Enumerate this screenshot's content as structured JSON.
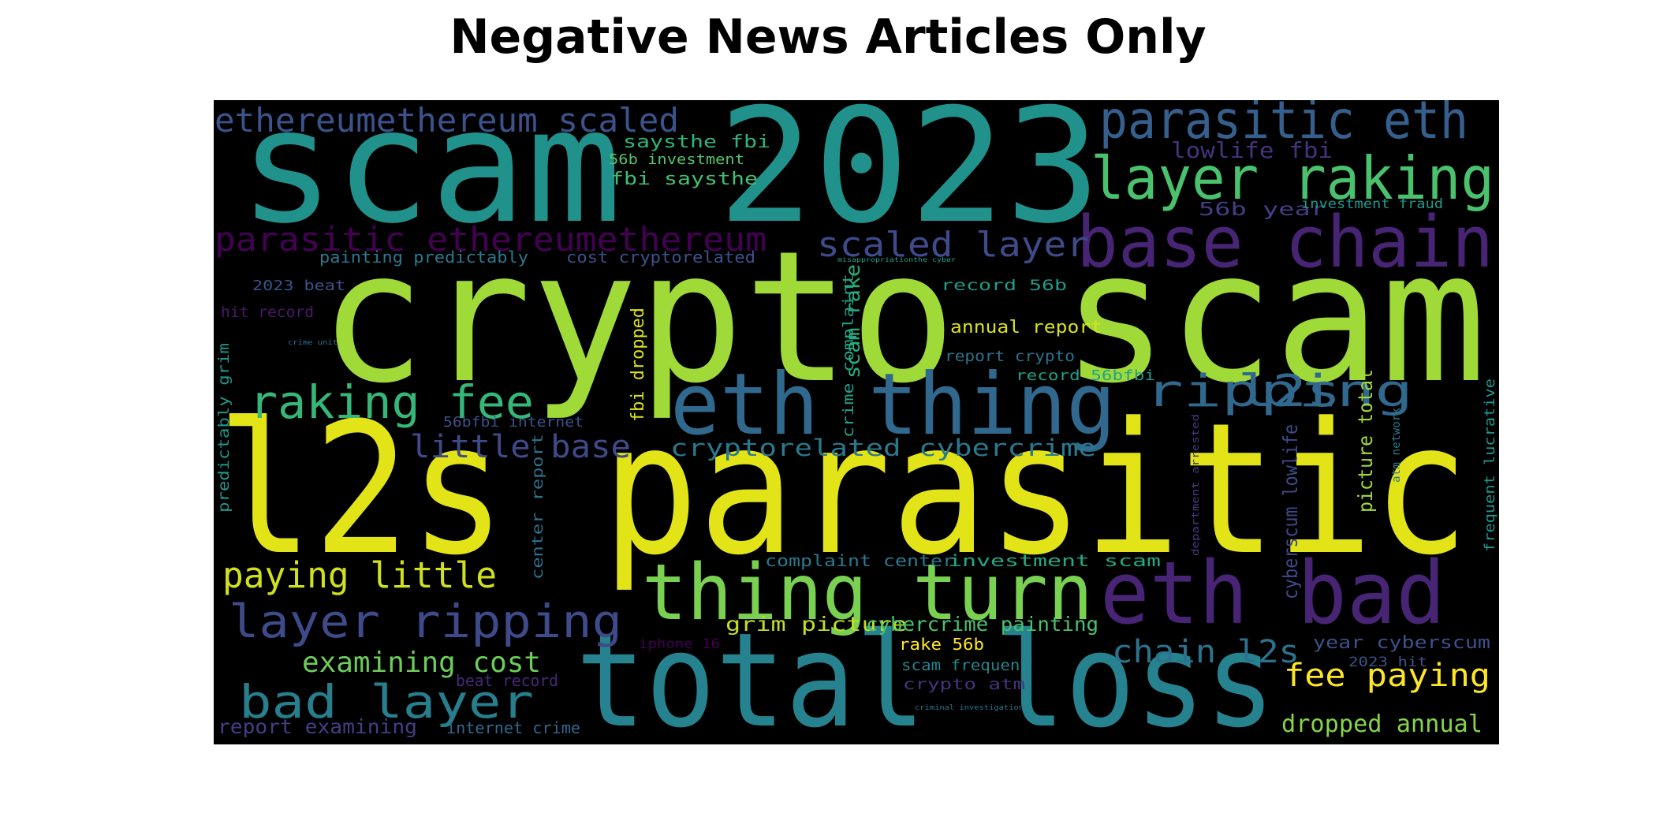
{
  "title": "Negative News Articles Only",
  "colors": {
    "background": "#000000",
    "page": "#ffffff"
  },
  "chart_data": {
    "type": "wordcloud",
    "words": [
      {
        "text": "scam 2023",
        "color": "#21918c"
      },
      {
        "text": "crypto scam",
        "color": "#a0da39"
      },
      {
        "text": "l2s parasitic",
        "color": "#e3e418"
      },
      {
        "text": "total loss",
        "color": "#26828e"
      },
      {
        "text": "eth thing",
        "color": "#31688e"
      },
      {
        "text": "thing turn",
        "color": "#7ad151"
      },
      {
        "text": "eth bad",
        "color": "#482475"
      },
      {
        "text": "base chain",
        "color": "#482475"
      },
      {
        "text": "layer raking",
        "color": "#4ac16d"
      },
      {
        "text": "parasitic eth",
        "color": "#355f8d"
      },
      {
        "text": "raking fee",
        "color": "#35b779"
      },
      {
        "text": "layer ripping",
        "color": "#3e4a89"
      },
      {
        "text": "bad layer",
        "color": "#277f8e"
      },
      {
        "text": "paying little",
        "color": "#d0e11c"
      },
      {
        "text": "ripping",
        "color": "#31688e"
      },
      {
        "text": "l2s",
        "color": "#31688e"
      },
      {
        "text": "ethereumethereum scaled",
        "color": "#3b528b"
      },
      {
        "text": "parasitic ethereumethereum",
        "color": "#440154"
      },
      {
        "text": "scaled layer",
        "color": "#3e4a89"
      },
      {
        "text": "little base",
        "color": "#3e4a89"
      },
      {
        "text": "cryptorelated cybercrime",
        "color": "#2a788e"
      },
      {
        "text": "examining cost",
        "color": "#6ccd5a"
      },
      {
        "text": "chain l2s",
        "color": "#2c728e"
      },
      {
        "text": "fee paying",
        "color": "#fde725"
      },
      {
        "text": "dropped annual",
        "color": "#86d549"
      },
      {
        "text": "lowlife fbi",
        "color": "#46337e"
      },
      {
        "text": "saysthe fbi",
        "color": "#2fb47c"
      },
      {
        "text": "56b investment",
        "color": "#54c568"
      },
      {
        "text": "fbi saysthe",
        "color": "#42be71"
      },
      {
        "text": "56b year",
        "color": "#433e85"
      },
      {
        "text": "investment fraud",
        "color": "#1f9a8a"
      },
      {
        "text": "painting predictably",
        "color": "#2a788e"
      },
      {
        "text": "cost cryptorelated",
        "color": "#3b528b"
      },
      {
        "text": "2023 beat",
        "color": "#3b528b"
      },
      {
        "text": "hit record",
        "color": "#481a6c"
      },
      {
        "text": "record 56b",
        "color": "#1f9a8a"
      },
      {
        "text": "misappropriationthe cyber",
        "color": "#20a386"
      },
      {
        "text": "annual report",
        "color": "#d8e219"
      },
      {
        "text": "report crypto",
        "color": "#2c728e"
      },
      {
        "text": "record 56bfbi",
        "color": "#1fa188"
      },
      {
        "text": "crime unit",
        "color": "#2c728e"
      },
      {
        "text": "56bfbi internet",
        "color": "#3b528b"
      },
      {
        "text": "grim picture",
        "color": "#c2df23"
      },
      {
        "text": "cybercrime painting",
        "color": "#4ac16d"
      },
      {
        "text": "complaint center",
        "color": "#2a788e"
      },
      {
        "text": "investment scam",
        "color": "#22a884"
      },
      {
        "text": "rake 56b",
        "color": "#fde725"
      },
      {
        "text": "scam frequent",
        "color": "#25858e"
      },
      {
        "text": "crypto atm",
        "color": "#46337e"
      },
      {
        "text": "criminal investigation",
        "color": "#2a788e"
      },
      {
        "text": "iphone 16",
        "color": "#440154"
      },
      {
        "text": "beat record",
        "color": "#482878"
      },
      {
        "text": "report examining",
        "color": "#433e85"
      },
      {
        "text": "internet crime",
        "color": "#31688e"
      },
      {
        "text": "year cyberscum",
        "color": "#3b528b"
      },
      {
        "text": "2023 hit",
        "color": "#3b528b"
      },
      {
        "text": "scam rake",
        "color": "#29af7f"
      },
      {
        "text": "fbi dropped",
        "color": "#d8e219"
      },
      {
        "text": "crime complaint",
        "color": "#20a386"
      },
      {
        "text": "predictably grim",
        "color": "#1f988b"
      },
      {
        "text": "center report",
        "color": "#2c728e"
      },
      {
        "text": "cyberscum lowlife",
        "color": "#3e4a89"
      },
      {
        "text": "picture total",
        "color": "#9fda3a"
      },
      {
        "text": "department arrested",
        "color": "#443a83"
      },
      {
        "text": "atm network",
        "color": "#2a788e"
      },
      {
        "text": "frequent lucrative",
        "color": "#1f988b"
      }
    ]
  }
}
